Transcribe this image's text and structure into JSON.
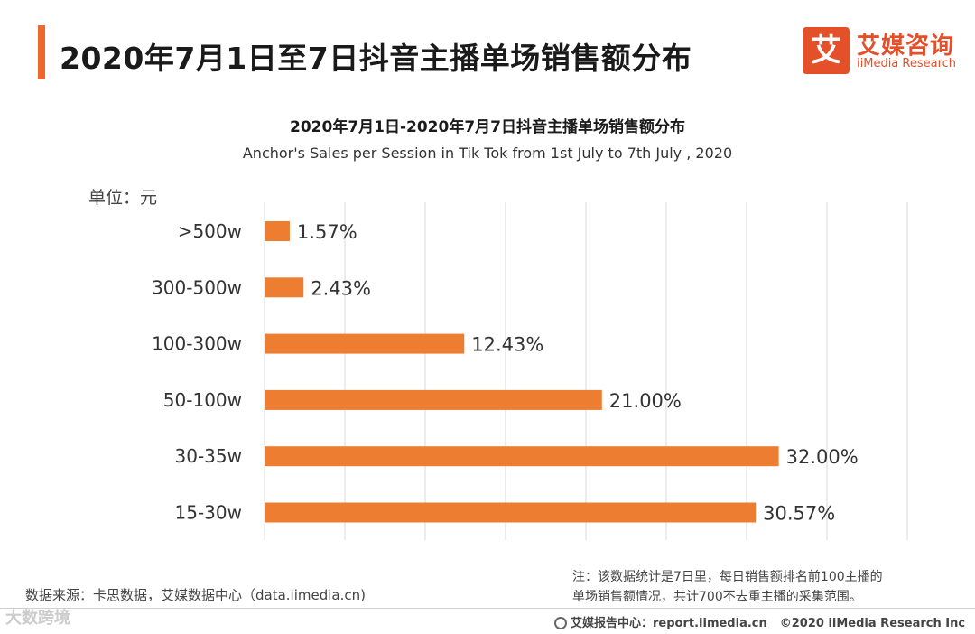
{
  "header": {
    "title": "2020年7月1日至7日抖音主播单场销售额分布",
    "logo_mark": "艾",
    "logo_cn": "艾媒咨询",
    "logo_en": "iiMedia Research"
  },
  "chart_data": {
    "type": "bar",
    "orientation": "horizontal",
    "title": "2020年7月1日-2020年7月7日抖音主播单场销售额分布",
    "subtitle": "Anchor's Sales per Session in Tik Tok from 1st July to 7th July , 2020",
    "unit": "单位：元",
    "categories": [
      ">500w",
      "300-500w",
      "100-300w",
      "50-100w",
      "30-35w",
      "15-30w"
    ],
    "values": [
      1.57,
      2.43,
      12.43,
      21.0,
      32.0,
      30.57
    ],
    "labels": [
      "1.57%",
      "2.43%",
      "12.43%",
      "21.00%",
      "32.00%",
      "30.57%"
    ],
    "xlim": [
      0,
      45
    ],
    "grid": true,
    "bar_color": "#ed7d31"
  },
  "footer": {
    "source": "数据来源：卡思数据，艾媒数据中心（data.iimedia.cn)",
    "note_line1": "注：该数据统计是7日里，每日销售额排名前100主播的",
    "note_line2": "单场销售额情况，共计700不去重主播的采集范围。",
    "report": "艾媒报告中心：report.iimedia.cn",
    "copyright": "©2020  iiMedia Research  Inc",
    "watermark": "大数跨境"
  }
}
